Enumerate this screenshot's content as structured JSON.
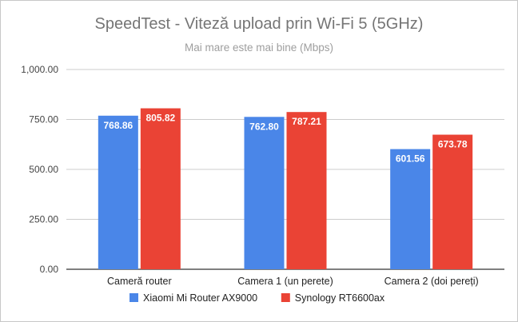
{
  "chart_data": {
    "type": "bar",
    "title": "SpeedTest - Viteză upload prin Wi-Fi 5 (5GHz)",
    "subtitle": "Mai mare este mai bine (Mbps)",
    "categories": [
      "Cameră router",
      "Camera 1 (un perete)",
      "Camera 2 (doi pereți)"
    ],
    "series": [
      {
        "name": "Xiaomi Mi Router AX9000",
        "color": "#4a86e8",
        "values": [
          768.86,
          762.8,
          601.56
        ],
        "labels": [
          "768.86",
          "762.80",
          "601.56"
        ]
      },
      {
        "name": "Synology RT6600ax",
        "color": "#ea4335",
        "values": [
          805.82,
          787.21,
          673.78
        ],
        "labels": [
          "805.82",
          "787.21",
          "673.78"
        ]
      }
    ],
    "ylim": [
      0,
      1000
    ],
    "yticks": [
      "0.00",
      "250.00",
      "500.00",
      "750.00",
      "1,000.00"
    ],
    "ytick_values": [
      0,
      250,
      500,
      750,
      1000
    ],
    "grid": true,
    "legend_position": "bottom"
  }
}
